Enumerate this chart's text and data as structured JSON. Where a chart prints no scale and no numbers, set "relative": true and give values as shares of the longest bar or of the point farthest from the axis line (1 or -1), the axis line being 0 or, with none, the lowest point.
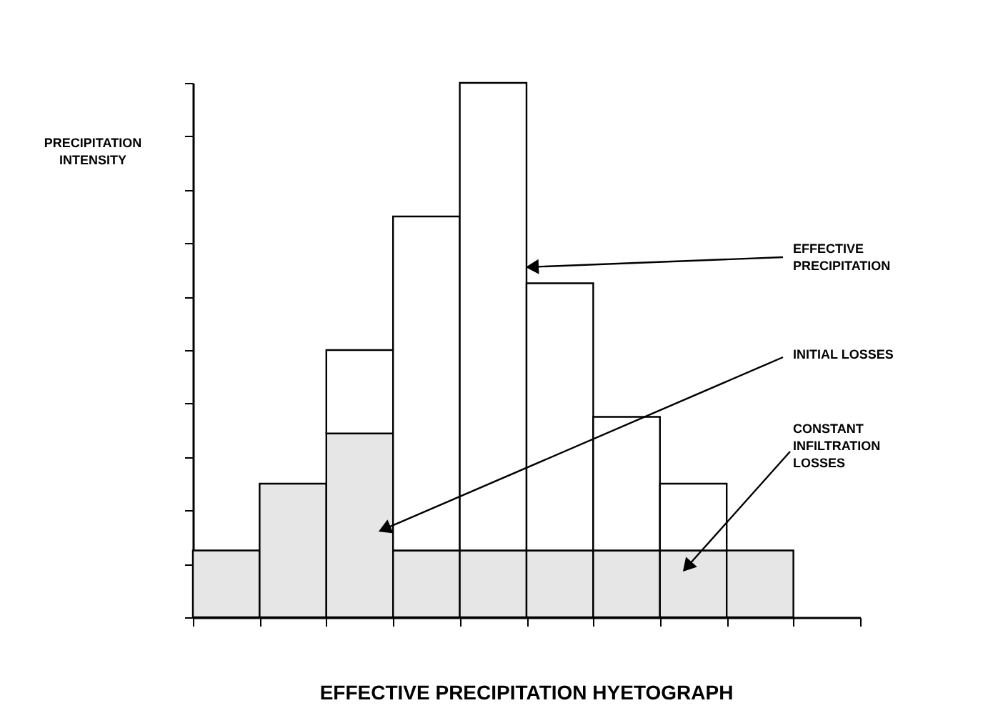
{
  "chart_data": {
    "type": "bar",
    "title": "EFFECTIVE PRECIPITATION HYETOGRAPH",
    "relative": true,
    "stacked": true,
    "tick_labels": false,
    "grid": false,
    "categories": [
      null,
      null,
      null,
      null,
      null,
      null,
      null,
      null,
      null
    ],
    "series": [
      {
        "color": "#e6e6e6",
        "values": [
          0.125,
          0.25,
          0.344,
          0.125,
          0.125,
          0.125,
          0.125,
          0.125,
          0.125
        ]
      },
      {
        "color": "#ffffff",
        "values": [
          null,
          null,
          0.156,
          0.625,
          0.875,
          0.5,
          0.25,
          0.125,
          null
        ]
      }
    ],
    "annotations": [
      "PRECIPITATION\nINTENSITY",
      "EFFECTIVE\nPRECIPITATION",
      "INITIAL LOSSES",
      "CONSTANT\nINFILTRATION\nLOSSES"
    ]
  }
}
